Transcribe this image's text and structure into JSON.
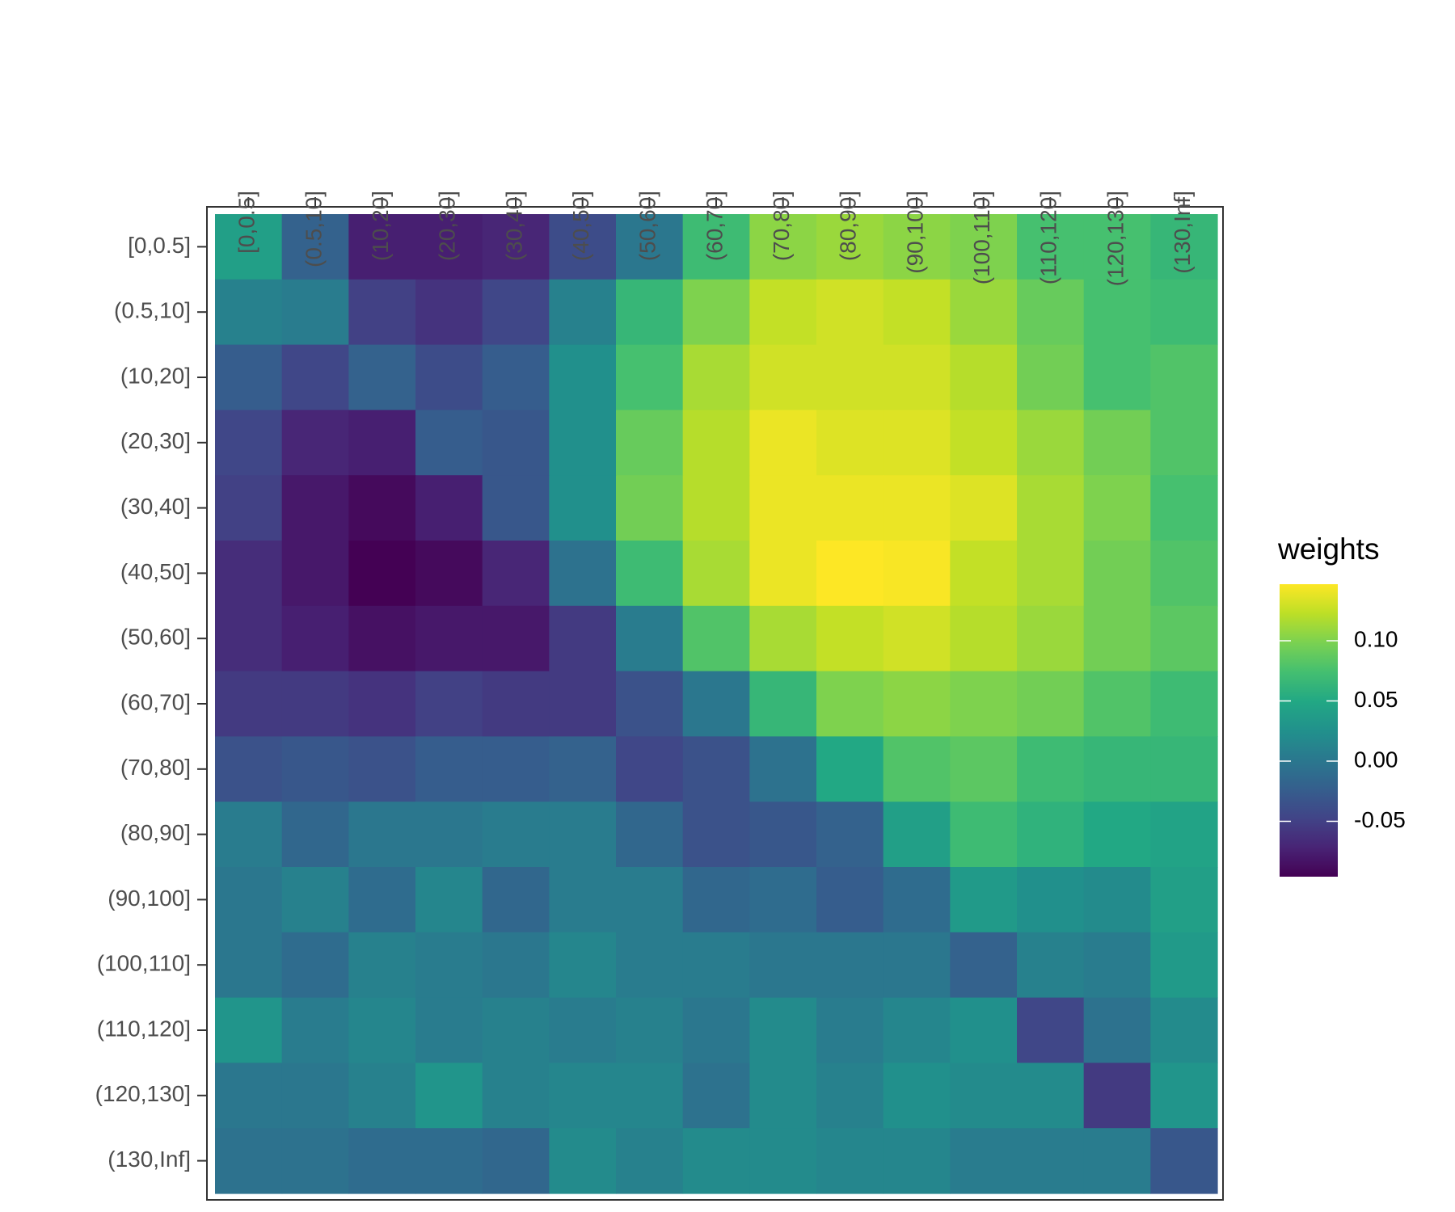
{
  "chart_data": {
    "type": "heatmap",
    "x_categories": [
      "[0,0.5]",
      "(0.5,10]",
      "(10,20]",
      "(20,30]",
      "(30,40]",
      "(40,50]",
      "(50,60]",
      "(60,70]",
      "(70,80]",
      "(80,90]",
      "(90,100]",
      "(100,110]",
      "(110,120]",
      "(120,130]",
      "(130,Inf]"
    ],
    "y_categories": [
      "[0,0.5]",
      "(0.5,10]",
      "(10,20]",
      "(20,30]",
      "(30,40]",
      "(40,50]",
      "(50,60]",
      "(60,70]",
      "(70,80]",
      "(80,90]",
      "(90,100]",
      "(100,110]",
      "(110,120]",
      "(120,130]",
      "(130,Inf]"
    ],
    "values": [
      [
        0.04,
        -0.02,
        -0.075,
        -0.075,
        -0.07,
        -0.04,
        0.0,
        0.07,
        0.105,
        0.11,
        0.105,
        0.1,
        0.075,
        0.075,
        0.065
      ],
      [
        0.01,
        0.005,
        -0.05,
        -0.06,
        -0.045,
        0.01,
        0.065,
        0.1,
        0.125,
        0.13,
        0.125,
        0.11,
        0.09,
        0.075,
        0.07
      ],
      [
        -0.025,
        -0.045,
        -0.02,
        -0.04,
        -0.025,
        0.025,
        0.075,
        0.115,
        0.13,
        0.13,
        0.13,
        0.12,
        0.095,
        0.075,
        0.08
      ],
      [
        -0.045,
        -0.07,
        -0.075,
        -0.025,
        -0.03,
        0.025,
        0.09,
        0.12,
        0.14,
        0.135,
        0.135,
        0.125,
        0.11,
        0.095,
        0.08
      ],
      [
        -0.05,
        -0.08,
        -0.09,
        -0.075,
        -0.03,
        0.025,
        0.095,
        0.12,
        0.14,
        0.14,
        0.14,
        0.135,
        0.115,
        0.1,
        0.075
      ],
      [
        -0.065,
        -0.08,
        -0.096,
        -0.09,
        -0.07,
        -0.005,
        0.07,
        0.115,
        0.14,
        0.147,
        0.145,
        0.125,
        0.115,
        0.095,
        0.08
      ],
      [
        -0.065,
        -0.075,
        -0.085,
        -0.08,
        -0.08,
        -0.055,
        0.005,
        0.08,
        0.115,
        0.125,
        0.13,
        0.12,
        0.11,
        0.095,
        0.085
      ],
      [
        -0.055,
        -0.055,
        -0.06,
        -0.05,
        -0.055,
        -0.055,
        -0.035,
        0.0,
        0.065,
        0.1,
        0.105,
        0.1,
        0.095,
        0.08,
        0.07
      ],
      [
        -0.035,
        -0.03,
        -0.035,
        -0.025,
        -0.025,
        -0.02,
        -0.045,
        -0.035,
        -0.005,
        0.05,
        0.08,
        0.085,
        0.07,
        0.065,
        0.065
      ],
      [
        0.005,
        -0.015,
        0.0,
        0.0,
        0.005,
        0.005,
        -0.015,
        -0.035,
        -0.03,
        -0.02,
        0.04,
        0.07,
        0.06,
        0.05,
        0.045
      ],
      [
        0.0,
        0.01,
        -0.01,
        0.015,
        -0.015,
        0.005,
        0.005,
        -0.015,
        -0.01,
        -0.025,
        -0.01,
        0.035,
        0.025,
        0.02,
        0.04
      ],
      [
        0.0,
        -0.01,
        0.01,
        0.005,
        0.0,
        0.015,
        0.005,
        0.005,
        0.0,
        0.0,
        0.0,
        -0.02,
        0.01,
        0.005,
        0.035
      ],
      [
        0.03,
        0.005,
        0.015,
        0.005,
        0.01,
        0.005,
        0.01,
        0.0,
        0.02,
        0.005,
        0.015,
        0.025,
        -0.045,
        -0.005,
        0.02
      ],
      [
        0.0,
        0.0,
        0.01,
        0.03,
        0.01,
        0.015,
        0.015,
        -0.005,
        0.02,
        0.01,
        0.025,
        0.02,
        0.02,
        -0.055,
        0.03
      ],
      [
        -0.005,
        -0.005,
        -0.01,
        -0.01,
        -0.015,
        0.02,
        0.01,
        0.02,
        0.02,
        0.015,
        0.015,
        0.005,
        0.005,
        0.005,
        -0.03
      ]
    ],
    "colormap": "viridis",
    "legend_title": "weights",
    "zlim": [
      -0.096,
      0.147
    ],
    "zticks": [
      -0.05,
      {
        "value": 0,
        "label": "0.00"
      },
      0.05,
      {
        "value": 0.1,
        "label": "0.10"
      }
    ]
  }
}
